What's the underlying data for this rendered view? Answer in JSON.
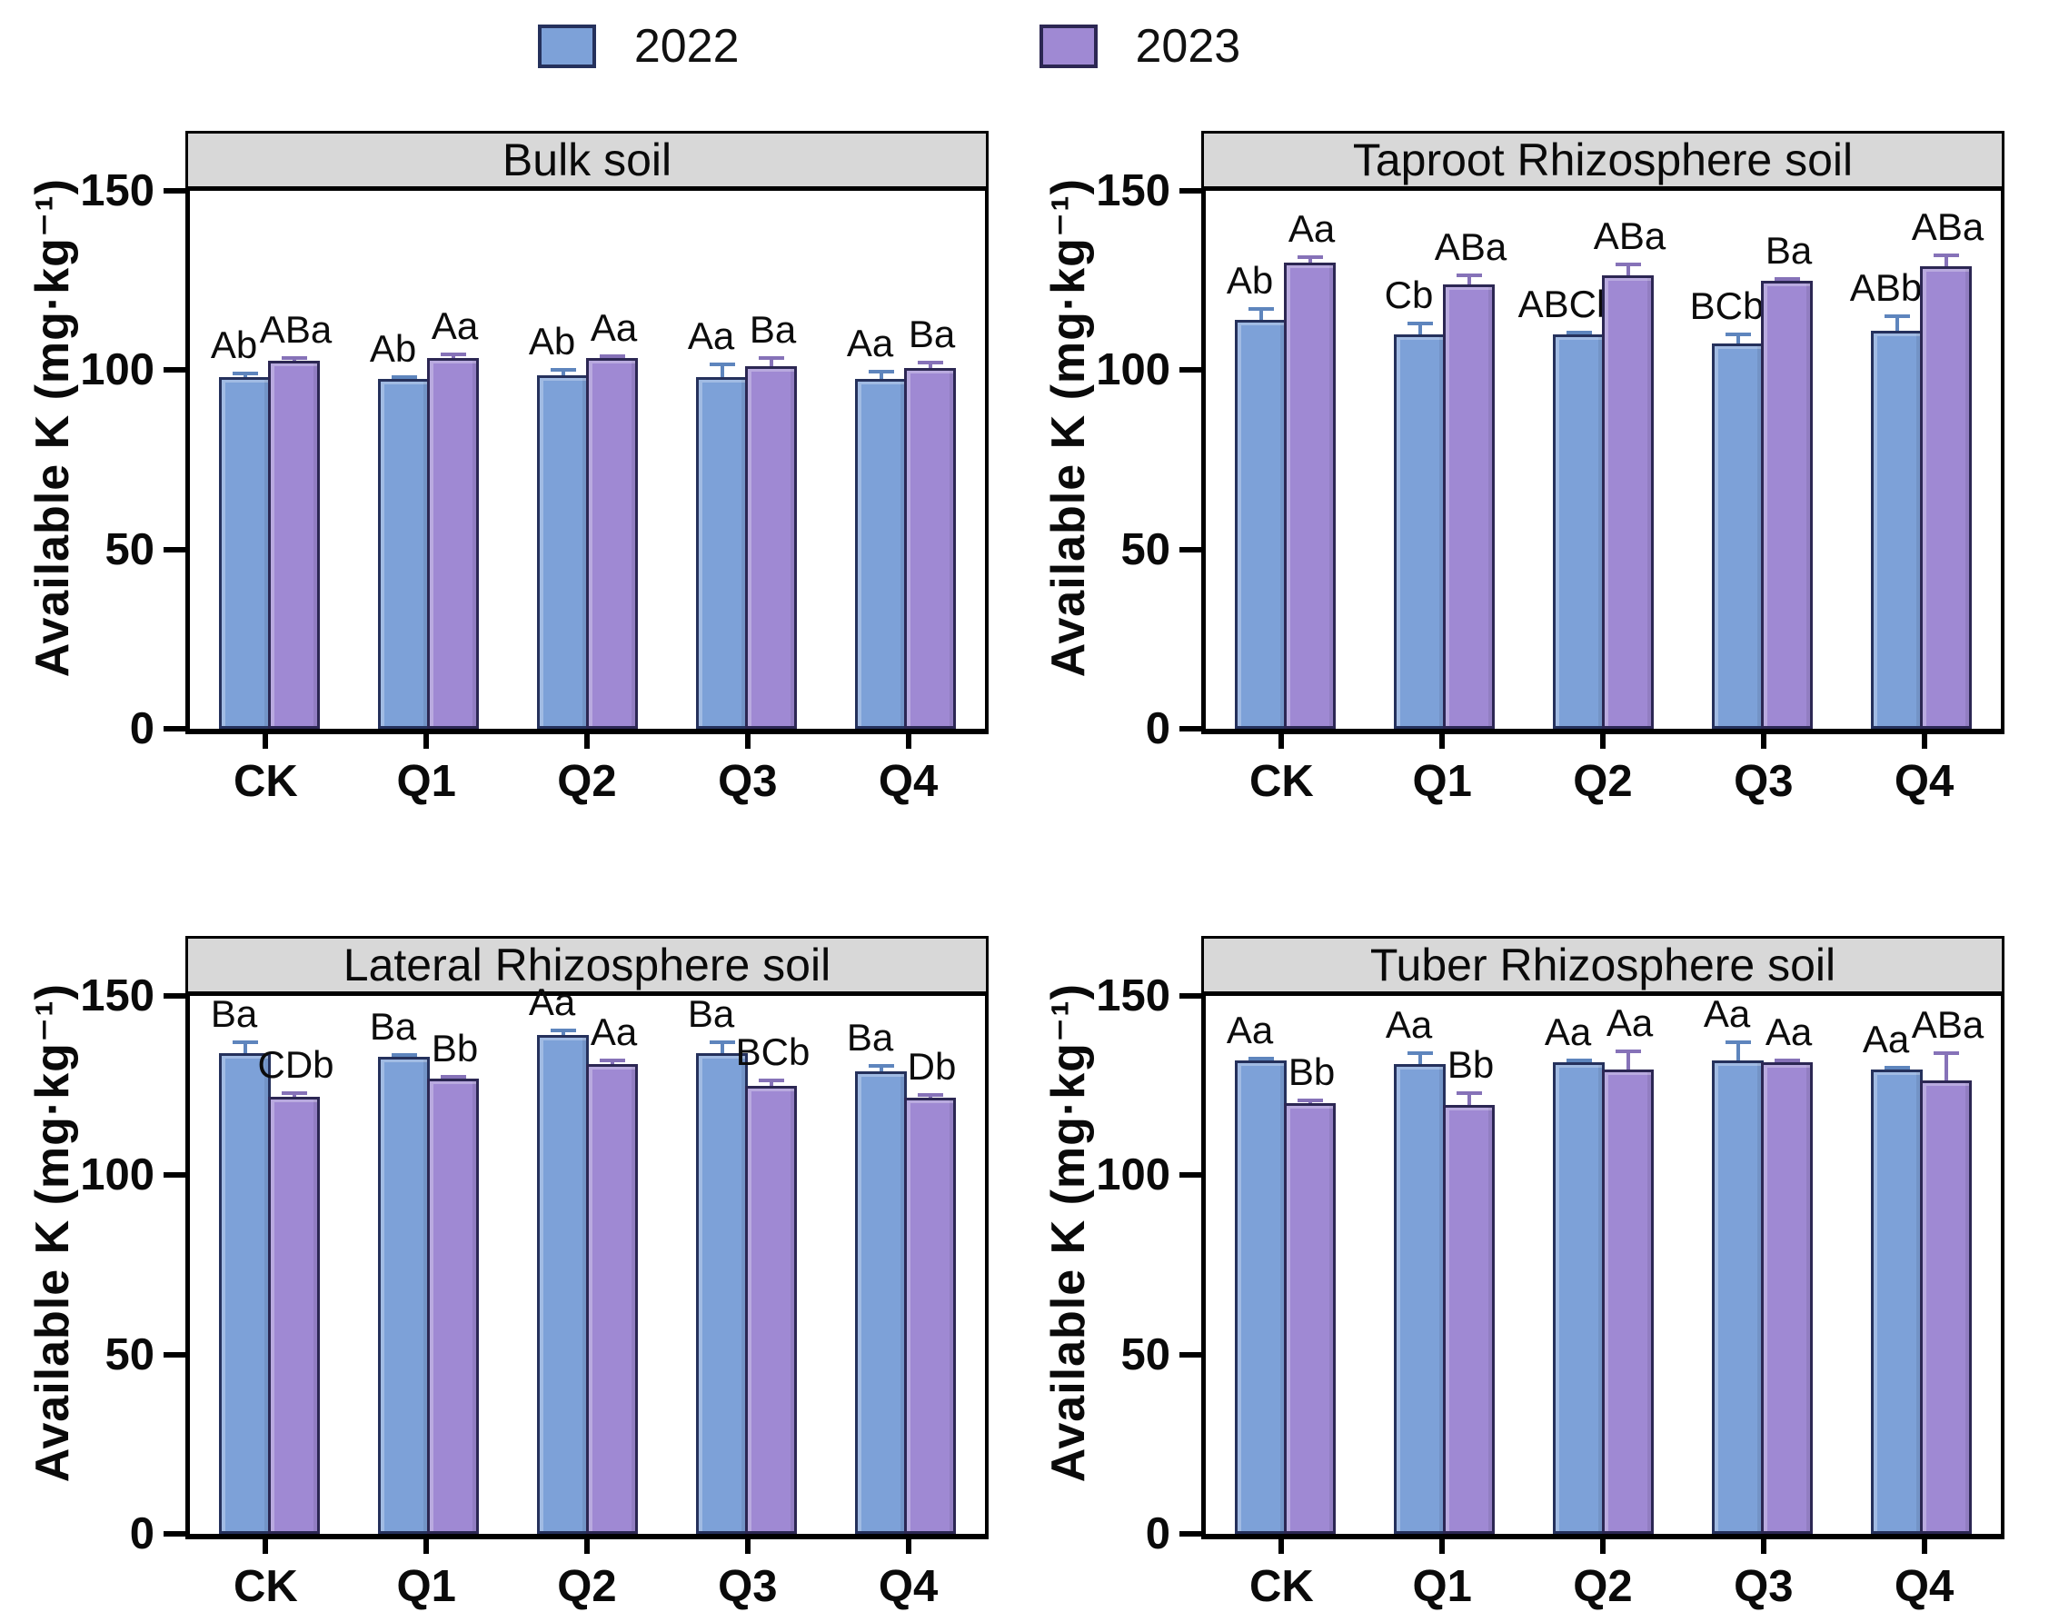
{
  "legend": {
    "items": [
      {
        "label": "2022",
        "fill": "#7DA1D8",
        "border": "#25315C",
        "error_color": "#5E85BD"
      },
      {
        "label": "2023",
        "fill": "#9F89D3",
        "border": "#2C2753",
        "error_color": "#8672B8"
      }
    ]
  },
  "axis": {
    "y_label": "Available K (mg·kg⁻¹)",
    "y_ticks": [
      0,
      50,
      100,
      150
    ],
    "y_max": 150,
    "categories": [
      "CK",
      "Q1",
      "Q2",
      "Q3",
      "Q4"
    ]
  },
  "style_colors": {
    "header_bg": "#D8D8D8",
    "frame": "#000000",
    "letter": "#0C0C0C"
  },
  "chart_data": [
    {
      "type": "bar",
      "title": "Bulk soil",
      "ylabel": "Available K (mg·kg⁻¹)",
      "xlabel": "",
      "ylim": [
        0,
        150
      ],
      "yticks": [
        0,
        50,
        100,
        150
      ],
      "categories": [
        "CK",
        "Q1",
        "Q2",
        "Q3",
        "Q4"
      ],
      "legend_position": "top-center",
      "grid": false,
      "series": [
        {
          "name": "2022",
          "values": [
            98,
            97.5,
            98.5,
            98,
            97.5
          ],
          "errors": [
            1.5,
            1,
            2,
            4,
            2.5
          ],
          "sig_letters": [
            "Ab",
            "Ab",
            "Ab",
            "Aa",
            "Aa"
          ]
        },
        {
          "name": "2023",
          "values": [
            102.5,
            103.5,
            103.5,
            101,
            100.5
          ],
          "errors": [
            1.5,
            1.5,
            1,
            3,
            2
          ],
          "sig_letters": [
            "ABa",
            "Aa",
            "Aa",
            "Ba",
            "Ba"
          ]
        }
      ]
    },
    {
      "type": "bar",
      "title": "Taproot Rhizosphere soil",
      "ylabel": "Available K (mg·kg⁻¹)",
      "xlabel": "",
      "ylim": [
        0,
        150
      ],
      "yticks": [
        0,
        50,
        100,
        150
      ],
      "categories": [
        "CK",
        "Q1",
        "Q2",
        "Q3",
        "Q4"
      ],
      "grid": false,
      "series": [
        {
          "name": "2022",
          "values": [
            114,
            110,
            110,
            107.5,
            111
          ],
          "errors": [
            3.5,
            3.5,
            1,
            3,
            4.5
          ],
          "sig_letters": [
            "Ab",
            "Cb",
            "ABCb",
            "BCb",
            "ABb"
          ]
        },
        {
          "name": "2023",
          "values": [
            130,
            124,
            126.5,
            125,
            129
          ],
          "errors": [
            2,
            3,
            3.5,
            1,
            3.5
          ],
          "sig_letters": [
            "Aa",
            "ABa",
            "ABa",
            "Ba",
            "ABa"
          ]
        }
      ]
    },
    {
      "type": "bar",
      "title": "Lateral Rhizosphere soil",
      "ylabel": "Available K (mg·kg⁻¹)",
      "xlabel": "",
      "ylim": [
        0,
        150
      ],
      "yticks": [
        0,
        50,
        100,
        150
      ],
      "categories": [
        "CK",
        "Q1",
        "Q2",
        "Q3",
        "Q4"
      ],
      "grid": false,
      "series": [
        {
          "name": "2022",
          "values": [
            134,
            133,
            139,
            134,
            129
          ],
          "errors": [
            3.5,
            1,
            2,
            3.5,
            2
          ],
          "sig_letters": [
            "Ba",
            "Ba",
            "Aa",
            "Ba",
            "Ba"
          ]
        },
        {
          "name": "2023",
          "values": [
            122,
            127,
            131,
            125,
            121.5
          ],
          "errors": [
            1.5,
            1,
            1.5,
            2,
            1.5
          ],
          "sig_letters": [
            "CDb",
            "Bb",
            "Aa",
            "BCb",
            "Db"
          ]
        }
      ]
    },
    {
      "type": "bar",
      "title": "Tuber Rhizosphere soil",
      "ylabel": "Available K (mg·kg⁻¹)",
      "xlabel": "",
      "ylim": [
        0,
        150
      ],
      "yticks": [
        0,
        50,
        100,
        150
      ],
      "categories": [
        "CK",
        "Q1",
        "Q2",
        "Q3",
        "Q4"
      ],
      "grid": false,
      "series": [
        {
          "name": "2022",
          "values": [
            132,
            131,
            131.5,
            132,
            129.5
          ],
          "errors": [
            1,
            3.5,
            1,
            5.5,
            1
          ],
          "sig_letters": [
            "Aa",
            "Aa",
            "Aa",
            "Aa",
            "Aa"
          ]
        },
        {
          "name": "2023",
          "values": [
            120,
            119.5,
            129.5,
            131.5,
            126.5
          ],
          "errors": [
            1.5,
            4,
            5.5,
            1,
            8
          ],
          "sig_letters": [
            "Bb",
            "Bb",
            "Aa",
            "Aa",
            "ABa"
          ]
        }
      ]
    }
  ]
}
